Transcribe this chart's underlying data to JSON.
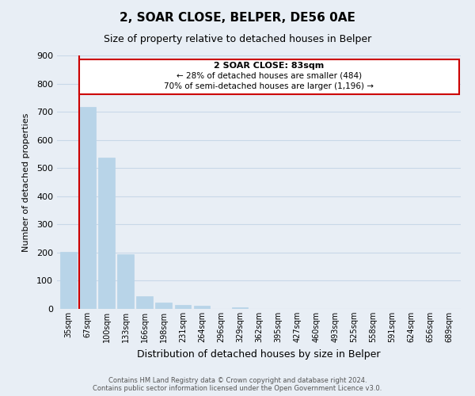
{
  "title": "2, SOAR CLOSE, BELPER, DE56 0AE",
  "subtitle": "Size of property relative to detached houses in Belper",
  "xlabel": "Distribution of detached houses by size in Belper",
  "ylabel": "Number of detached properties",
  "bins": [
    "35sqm",
    "67sqm",
    "100sqm",
    "133sqm",
    "166sqm",
    "198sqm",
    "231sqm",
    "264sqm",
    "296sqm",
    "329sqm",
    "362sqm",
    "395sqm",
    "427sqm",
    "460sqm",
    "493sqm",
    "525sqm",
    "558sqm",
    "591sqm",
    "624sqm",
    "656sqm",
    "689sqm"
  ],
  "values": [
    202,
    716,
    537,
    195,
    46,
    22,
    14,
    10,
    0,
    7,
    0,
    0,
    0,
    0,
    0,
    0,
    0,
    0,
    0,
    0,
    0
  ],
  "bar_color": "#b8d4e8",
  "highlight_bar_index": 1,
  "highlight_line_color": "#cc0000",
  "annotation_title": "2 SOAR CLOSE: 83sqm",
  "annotation_line1": "← 28% of detached houses are smaller (484)",
  "annotation_line2": "70% of semi-detached houses are larger (1,196) →",
  "annotation_box_color": "#ffffff",
  "annotation_box_edge": "#cc0000",
  "ylim": [
    0,
    900
  ],
  "yticks": [
    0,
    100,
    200,
    300,
    400,
    500,
    600,
    700,
    800,
    900
  ],
  "grid_color": "#c8d8e8",
  "footer_line1": "Contains HM Land Registry data © Crown copyright and database right 2024.",
  "footer_line2": "Contains public sector information licensed under the Open Government Licence v3.0.",
  "bg_color": "#e8eef5"
}
